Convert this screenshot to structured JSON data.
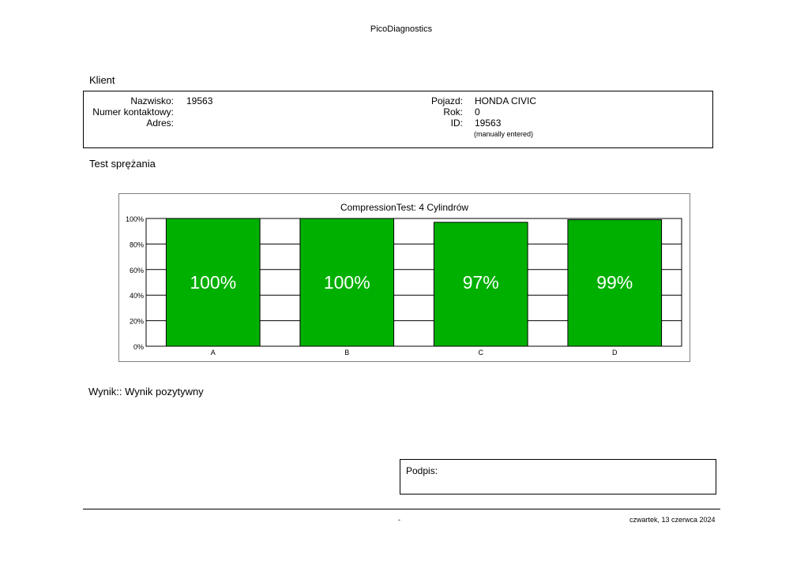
{
  "header": {
    "app_title": "PicoDiagnostics"
  },
  "client": {
    "section_title": "Klient",
    "surname_label": "Nazwisko:",
    "surname_value": "19563",
    "contact_label": "Numer kontaktowy:",
    "contact_value": "",
    "address_label": "Adres:",
    "address_value": "",
    "vehicle_label": "Pojazd:",
    "vehicle_value": "HONDA CIVIC",
    "year_label": "Rok:",
    "year_value": "0",
    "id_label": "ID:",
    "id_value": "19563",
    "id_note": "(manually entered)"
  },
  "test": {
    "section_title": "Test sprężania"
  },
  "chart_data": {
    "type": "bar",
    "title": "CompressionTest: 4 Cylindrów",
    "categories": [
      "A",
      "B",
      "C",
      "D"
    ],
    "values": [
      100,
      100,
      97,
      99
    ],
    "data_labels": [
      "100%",
      "100%",
      "97%",
      "99%"
    ],
    "yticks": [
      "0%",
      "20%",
      "40%",
      "60%",
      "80%",
      "100%"
    ],
    "ylim": [
      0,
      100
    ],
    "grid": true,
    "bar_color": "#00b000"
  },
  "result": {
    "text": "Wynik:: Wynik pozytywny"
  },
  "signature": {
    "label": "Podpis:"
  },
  "footer": {
    "center": "-",
    "date": "czwartek, 13 czerwca 2024"
  }
}
